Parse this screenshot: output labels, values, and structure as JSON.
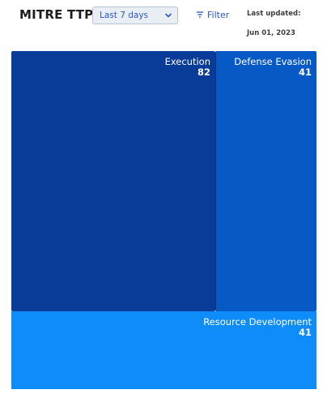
{
  "header": {
    "title": "MITRE TTP",
    "range_select": {
      "value": "Last 7 days"
    },
    "filter_label": "Filter",
    "last_updated_label": "Last updated:",
    "last_updated_date": "Jun 01, 2023"
  },
  "colors": {
    "execution": "#093c99",
    "defense_evasion": "#075ac6",
    "resource_development": "#0d8cfa",
    "accent": "#2a56c6"
  },
  "chart_data": {
    "type": "treemap",
    "items": [
      {
        "name": "Execution",
        "value": 82
      },
      {
        "name": "Defense Evasion",
        "value": 41
      },
      {
        "name": "Resource Development",
        "value": 41
      }
    ]
  }
}
